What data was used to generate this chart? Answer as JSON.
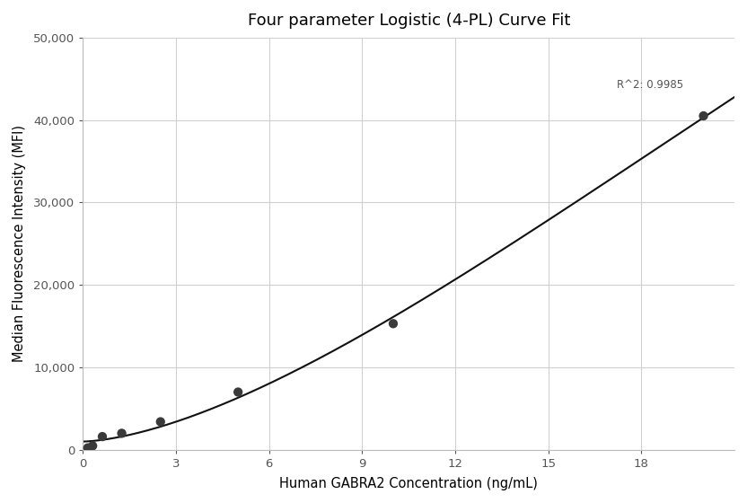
{
  "title": "Four parameter Logistic (4-PL) Curve Fit",
  "xlabel": "Human GABRA2 Concentration (ng/mL)",
  "ylabel": "Median Fluorescence Intensity (MFI)",
  "scatter_x": [
    0.156,
    0.312,
    0.625,
    1.25,
    2.5,
    5.0,
    10.0,
    20.0
  ],
  "scatter_y": [
    230,
    480,
    1600,
    2000,
    3400,
    7000,
    15300,
    40500
  ],
  "r_squared": "R^2: 0.9985",
  "xlim": [
    0,
    21
  ],
  "ylim": [
    0,
    50000
  ],
  "xticks": [
    0,
    3,
    6,
    9,
    12,
    15,
    18
  ],
  "yticks": [
    0,
    10000,
    20000,
    30000,
    40000,
    50000
  ],
  "background_color": "#ffffff",
  "grid_color": "#d0d0d0",
  "line_color": "#111111",
  "scatter_color": "#3a3a3a",
  "title_fontsize": 13,
  "label_fontsize": 10.5,
  "tick_fontsize": 9.5,
  "4pl_A": 50,
  "4pl_B": 1.85,
  "4pl_C": 120.0,
  "4pl_D": 95000
}
